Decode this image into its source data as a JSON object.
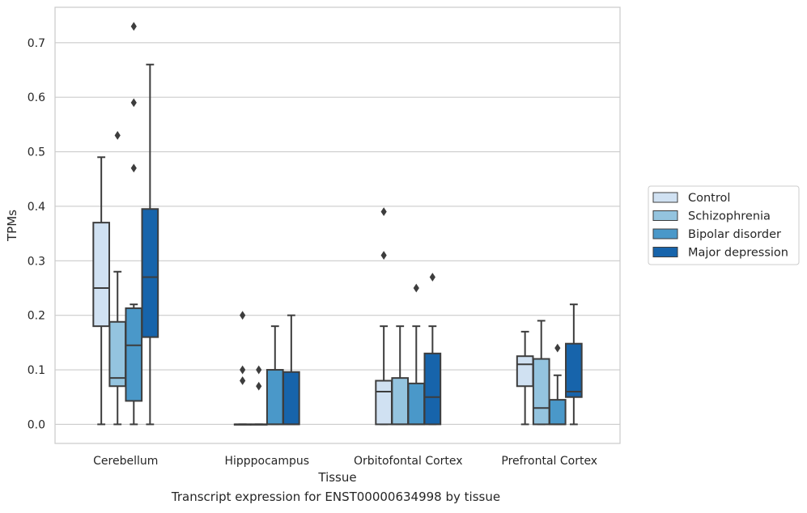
{
  "chart_data": {
    "type": "box",
    "title": "",
    "xlabel": "Tissue",
    "ylabel": "TPMs",
    "caption": "Transcript expression for ENST00000634998 by tissue",
    "ylim": [
      -0.035,
      0.765
    ],
    "yticks": [
      "0.0",
      "0.1",
      "0.2",
      "0.3",
      "0.4",
      "0.5",
      "0.6",
      "0.7"
    ],
    "ytick_values": [
      0.0,
      0.1,
      0.2,
      0.3,
      0.4,
      0.5,
      0.6,
      0.7
    ],
    "grid": "horizontal",
    "legend_position": "outside-right",
    "categories": [
      "Cerebellum",
      "Hipppocampus",
      "Orbitofontal Cortex",
      "Prefrontal Cortex"
    ],
    "series": [
      {
        "name": "Control",
        "color": "#d0e1f2",
        "boxes": [
          {
            "whislo": 0.0,
            "q1": 0.18,
            "med": 0.25,
            "q3": 0.37,
            "whishi": 0.49,
            "fliers": []
          },
          {
            "whislo": 0.0,
            "q1": 0.0,
            "med": 0.0,
            "q3": 0.0,
            "whishi": 0.0,
            "fliers": [
              0.08,
              0.1,
              0.2
            ]
          },
          {
            "whislo": 0.0,
            "q1": 0.0,
            "med": 0.06,
            "q3": 0.08,
            "whishi": 0.18,
            "fliers": [
              0.31,
              0.39
            ]
          },
          {
            "whislo": 0.0,
            "q1": 0.07,
            "med": 0.11,
            "q3": 0.125,
            "whishi": 0.17,
            "fliers": []
          }
        ]
      },
      {
        "name": "Schizophrenia",
        "color": "#94c4df",
        "boxes": [
          {
            "whislo": 0.0,
            "q1": 0.07,
            "med": 0.085,
            "q3": 0.188,
            "whishi": 0.28,
            "fliers": [
              0.53
            ]
          },
          {
            "whislo": 0.0,
            "q1": 0.0,
            "med": 0.0,
            "q3": 0.0,
            "whishi": 0.0,
            "fliers": [
              0.07,
              0.1
            ]
          },
          {
            "whislo": 0.0,
            "q1": 0.0,
            "med": 0.0,
            "q3": 0.085,
            "whishi": 0.18,
            "fliers": []
          },
          {
            "whislo": 0.0,
            "q1": 0.0,
            "med": 0.03,
            "q3": 0.12,
            "whishi": 0.19,
            "fliers": []
          }
        ]
      },
      {
        "name": "Bipolar disorder",
        "color": "#4a98c9",
        "boxes": [
          {
            "whislo": 0.0,
            "q1": 0.043,
            "med": 0.145,
            "q3": 0.213,
            "whishi": 0.22,
            "fliers": [
              0.47,
              0.59,
              0.73
            ]
          },
          {
            "whislo": 0.0,
            "q1": 0.0,
            "med": 0.0,
            "q3": 0.1,
            "whishi": 0.18,
            "fliers": []
          },
          {
            "whislo": 0.0,
            "q1": 0.0,
            "med": 0.0,
            "q3": 0.075,
            "whishi": 0.18,
            "fliers": [
              0.25
            ]
          },
          {
            "whislo": 0.0,
            "q1": 0.0,
            "med": 0.0,
            "q3": 0.045,
            "whishi": 0.09,
            "fliers": [
              0.14
            ]
          }
        ]
      },
      {
        "name": "Major depression",
        "color": "#1764ab",
        "boxes": [
          {
            "whislo": 0.0,
            "q1": 0.16,
            "med": 0.27,
            "q3": 0.395,
            "whishi": 0.66,
            "fliers": []
          },
          {
            "whislo": 0.0,
            "q1": 0.0,
            "med": 0.0,
            "q3": 0.096,
            "whishi": 0.2,
            "fliers": []
          },
          {
            "whislo": 0.0,
            "q1": 0.0,
            "med": 0.05,
            "q3": 0.13,
            "whishi": 0.18,
            "fliers": [
              0.27
            ]
          },
          {
            "whislo": 0.0,
            "q1": 0.05,
            "med": 0.06,
            "q3": 0.148,
            "whishi": 0.22,
            "fliers": []
          }
        ]
      }
    ]
  }
}
